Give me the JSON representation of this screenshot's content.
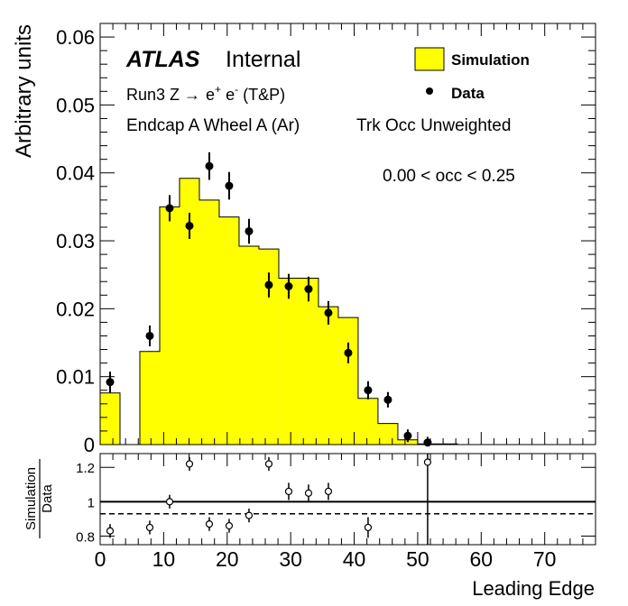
{
  "chart_data": [
    {
      "type": "histogram",
      "xlabel": "",
      "ylabel": "Arbitrary units",
      "xlim": [
        0,
        78
      ],
      "ylim": [
        0,
        0.062
      ],
      "yticks": [
        0,
        0.01,
        0.02,
        0.03,
        0.04,
        0.05,
        0.06
      ],
      "ytick_labels": [
        "0",
        "0.01",
        "0.02",
        "0.03",
        "0.04",
        "0.05",
        "0.06"
      ],
      "bin_width": 3.125,
      "annotations": {
        "experiment": "ATLAS",
        "status": "Internal",
        "run_prefix": "Run3 Z ",
        "run_arrow": "→",
        "run_e1": "e",
        "run_plus": "+",
        "run_e2": " e",
        "run_minus": "-",
        "run_suffix": " (T&P)",
        "region": "Endcap A Wheel A (Ar)",
        "weighting": "Trk Occ Unweighted",
        "selection": "0.00 < occ < 0.25"
      },
      "series": [
        {
          "name": "Simulation",
          "kind": "filled-histogram",
          "color": "#ffff00",
          "edge_color": "#000000",
          "bin_edges": [
            0,
            3.125,
            6.25,
            9.375,
            12.5,
            15.625,
            18.75,
            21.875,
            25,
            28.125,
            31.25,
            34.375,
            37.5,
            40.625,
            43.75,
            46.875,
            50,
            53.125,
            56.25
          ],
          "values": [
            0.0076,
            0.0,
            0.0137,
            0.035,
            0.0392,
            0.036,
            0.0335,
            0.0292,
            0.0288,
            0.0245,
            0.0245,
            0.0203,
            0.0187,
            0.0068,
            0.0031,
            0.0007,
            0.0001,
            0.0001
          ]
        },
        {
          "name": "Data",
          "kind": "points-with-errors",
          "color": "#000000",
          "x": [
            1.5625,
            7.8125,
            10.9375,
            14.0625,
            17.1875,
            20.3125,
            23.4375,
            26.5625,
            29.6875,
            32.8125,
            35.9375,
            39.0625,
            42.1875,
            45.3125,
            48.4375,
            51.5625
          ],
          "values": [
            0.0092,
            0.016,
            0.0348,
            0.0322,
            0.041,
            0.0381,
            0.0314,
            0.0235,
            0.0233,
            0.0229,
            0.0194,
            0.0135,
            0.008,
            0.0066,
            0.0013,
            0.0003
          ],
          "errors": [
            0.001,
            0.001,
            0.0014,
            0.0014,
            0.0015,
            0.0015,
            0.0013,
            0.0013,
            0.0013,
            0.0013,
            0.0012,
            0.001,
            0.0008,
            0.0006,
            0.0004,
            0.0003
          ]
        }
      ]
    },
    {
      "type": "ratio",
      "xlabel": "Leading Edge",
      "ylabel_numerator": "Simulation",
      "ylabel_denominator": "Data",
      "xlim": [
        0,
        78
      ],
      "ylim": [
        0.75,
        1.28
      ],
      "xticks": [
        0,
        10,
        20,
        30,
        40,
        50,
        60,
        70
      ],
      "xtick_labels": [
        "0",
        "10",
        "20",
        "30",
        "40",
        "50",
        "60",
        "70"
      ],
      "yticks": [
        0.8,
        1,
        1.2
      ],
      "ytick_labels": [
        "0.8",
        "1",
        "1.2"
      ],
      "reference_line": 1.0,
      "dashed_line": 0.93,
      "x": [
        1.5625,
        7.8125,
        10.9375,
        14.0625,
        17.1875,
        20.3125,
        23.4375,
        26.5625,
        29.6875,
        32.8125,
        35.9375,
        42.1875,
        51.5625
      ],
      "values": [
        0.83,
        0.85,
        1.0,
        1.22,
        0.87,
        0.86,
        0.92,
        1.22,
        1.06,
        1.05,
        1.06,
        0.85,
        1.23
      ],
      "errors": [
        0.04,
        0.04,
        0.04,
        0.04,
        0.04,
        0.04,
        0.04,
        0.04,
        0.05,
        0.05,
        0.05,
        0.06,
        0.6
      ]
    }
  ]
}
